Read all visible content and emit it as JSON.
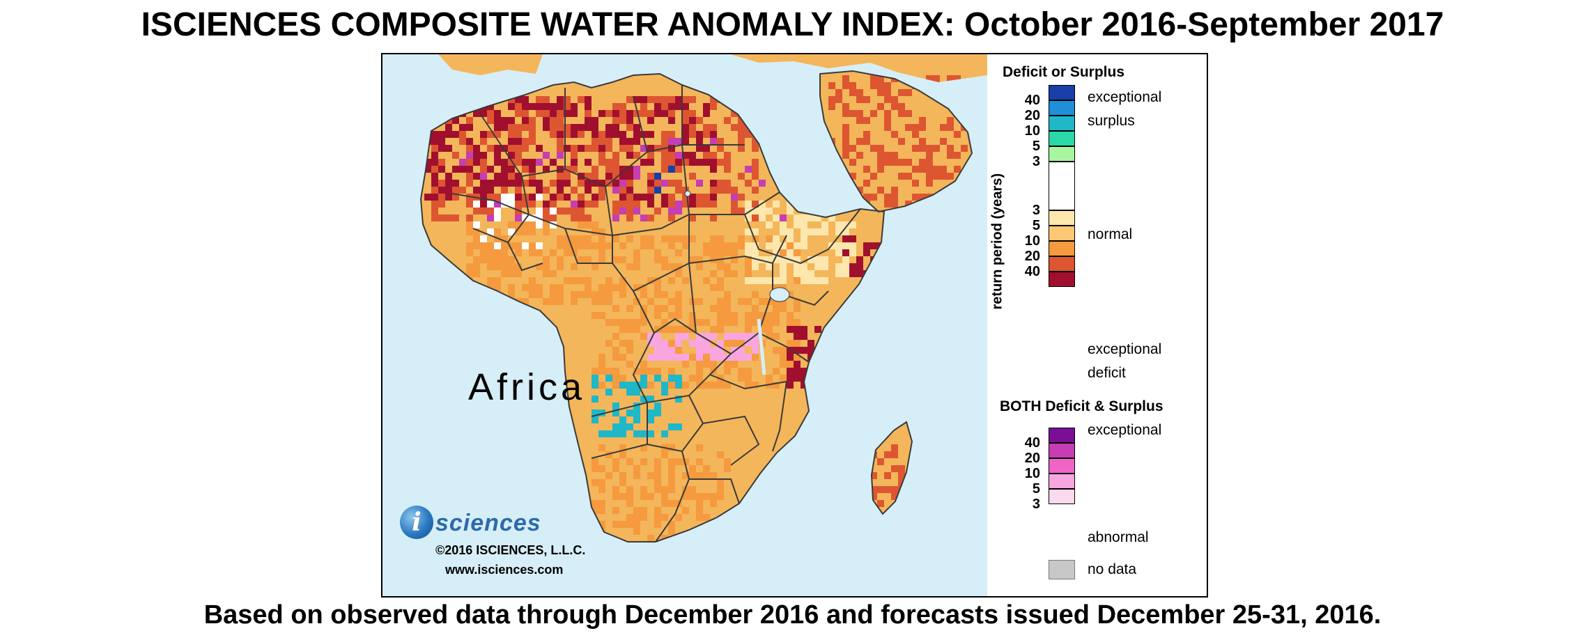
{
  "title": "ISCIENCES COMPOSITE WATER ANOMALY INDEX: October 2016-September 2017",
  "footer": "Based on observed data through December 2016 and forecasts issued December 25-31, 2016.",
  "map": {
    "region_label": "Africa",
    "colors": {
      "ocean": "#d6eef8",
      "land_base": "#f4b65a",
      "border": "#3a3a3a"
    }
  },
  "logo": {
    "mark": "i",
    "word": "sciences",
    "copyright": "©2016 ISCIENCES, L.L.C.",
    "url": "www.isciences.com"
  },
  "legend": {
    "deficit_surplus": {
      "heading": "Deficit or Surplus",
      "axis_label": "return period (years)",
      "surplus_ticks": [
        "40",
        "20",
        "10",
        "5",
        "3"
      ],
      "deficit_ticks": [
        "3",
        "5",
        "10",
        "20",
        "40"
      ],
      "surplus_colors": [
        "#1a3fa8",
        "#1e8fd8",
        "#1fb8c8",
        "#2ad8a8",
        "#a8f5a0"
      ],
      "normal_color": "#ffffff",
      "deficit_colors": [
        "#fde7ad",
        "#fcc873",
        "#f59a3e",
        "#dd5631",
        "#a0102e"
      ],
      "label_exceptional_surplus": "exceptional",
      "label_exceptional_surplus_2": "surplus",
      "label_normal": "normal",
      "label_exceptional_deficit": "exceptional",
      "label_exceptional_deficit_2": "deficit"
    },
    "both": {
      "heading": "BOTH Deficit & Surplus",
      "ticks": [
        "40",
        "20",
        "10",
        "5",
        "3"
      ],
      "colors": [
        "#7a0f96",
        "#c63db4",
        "#f064c8",
        "#f9a6e0",
        "#fcdaee"
      ],
      "label_exceptional": "exceptional",
      "label_abnormal": "abnormal"
    },
    "no_data": {
      "label": "no data",
      "color": "#c8c8c8"
    }
  }
}
